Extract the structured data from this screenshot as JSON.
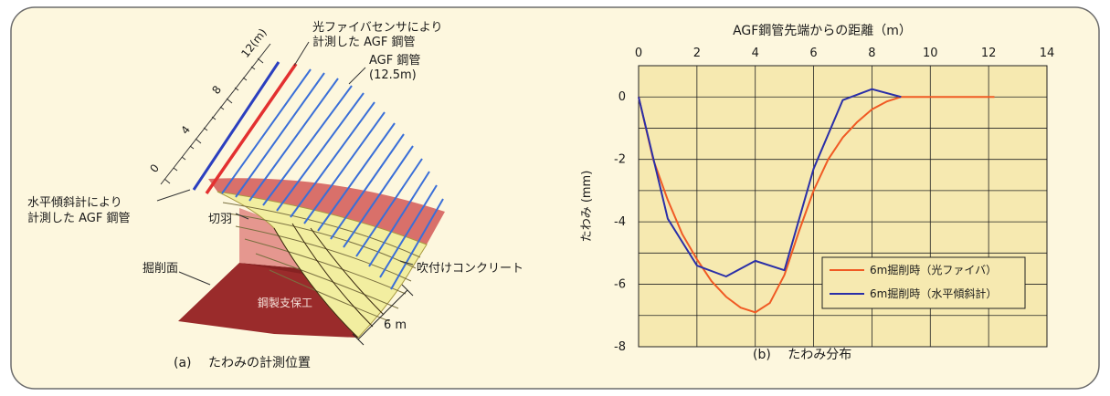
{
  "colors": {
    "background": "#fdf7de",
    "frame": "#6b6b6b",
    "plot_bg": "#f6e9b0",
    "shotcrete": "#f2eea0",
    "crown_band": "#d9706a",
    "face_area": "#e5978f",
    "excavation_face": "#9a2b2b",
    "steel_support_dark": "#7a1c1c",
    "pipe_blue": "#3a6fd8",
    "pipe_red": "#e33030",
    "series_fiber": "#f05a24",
    "series_inclinometer": "#2a2fa8"
  },
  "panel_a": {
    "caption": "(a)　 たわみの計測位置",
    "label_fiber_pipe_line1": "光ファイバセンサにより",
    "label_fiber_pipe_line2": "計測した AGF 鋼管",
    "label_agf_line1": "AGF 鋼管",
    "label_agf_line2": "(12.5m)",
    "label_incl_line1": "水平傾斜計により",
    "label_incl_line2": "計測した AGF 鋼管",
    "label_face": "切羽",
    "label_excavation_face": "掘削面",
    "label_steel_support": "鋼製支保工",
    "label_shotcrete": "吹付けコンクリート",
    "label_length": "6 m",
    "scale_labels": [
      "0",
      "4",
      "8",
      "12(m)"
    ],
    "icon": "tunnel-diagram"
  },
  "chart_data": {
    "type": "line",
    "title": "AGF鋼管先端からの距離（m）",
    "caption": "(b)　 たわみ分布",
    "xlabel": "AGF鋼管先端からの距離（m）",
    "ylabel": "たわみ (mm)",
    "xlim": [
      0,
      14
    ],
    "ylim": [
      -8,
      1
    ],
    "x_ticks": [
      "0",
      "2",
      "4",
      "6",
      "8",
      "10",
      "12",
      "14"
    ],
    "y_ticks": [
      "0",
      "-2",
      "-4",
      "-6",
      "-8"
    ],
    "grid": true,
    "legend_position": "bottom-right",
    "series": [
      {
        "name": "6m掘削時（光ファイバ）",
        "color": "#f05a24",
        "x": [
          0,
          0.5,
          1,
          1.5,
          2,
          2.5,
          3,
          3.5,
          4,
          4.5,
          5,
          5.5,
          6,
          6.5,
          7,
          7.5,
          8,
          8.5,
          9,
          10,
          11,
          12.2
        ],
        "y": [
          0,
          -2.0,
          -3.3,
          -4.4,
          -5.2,
          -5.9,
          -6.4,
          -6.75,
          -6.9,
          -6.6,
          -5.7,
          -4.3,
          -3.0,
          -2.0,
          -1.3,
          -0.8,
          -0.4,
          -0.15,
          0,
          0,
          0,
          0
        ]
      },
      {
        "name": "6m掘削時（水平傾斜計）",
        "color": "#2a2fa8",
        "x": [
          0,
          1,
          2,
          3,
          4,
          5,
          6,
          7,
          8,
          9
        ],
        "y": [
          0,
          -3.9,
          -5.4,
          -5.75,
          -5.25,
          -5.55,
          -2.3,
          -0.1,
          0.25,
          0
        ]
      }
    ]
  }
}
